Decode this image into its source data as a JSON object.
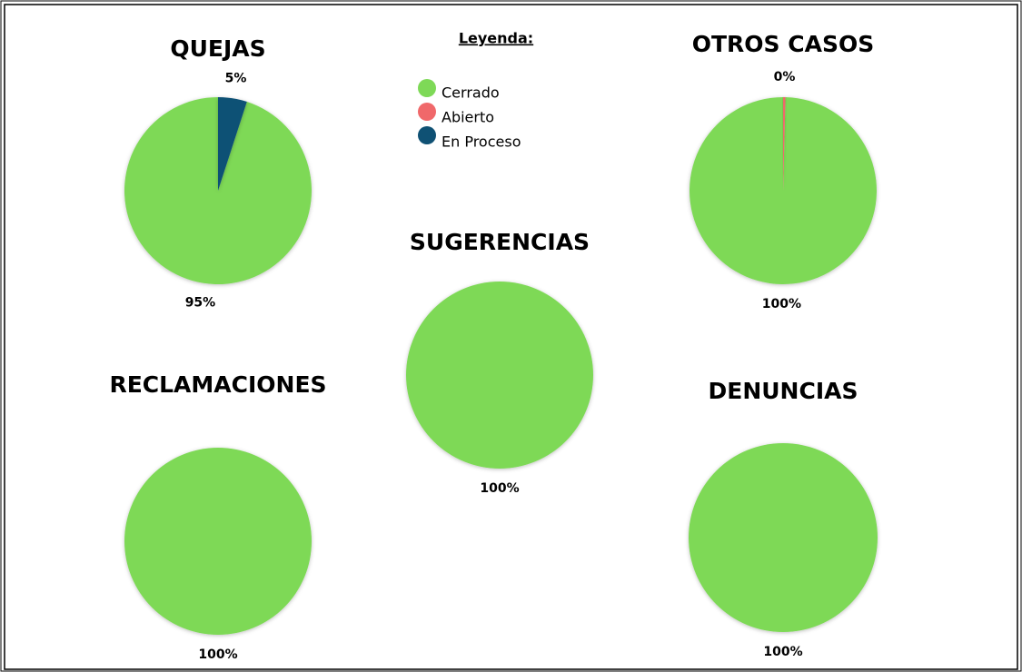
{
  "legend_title": "Leyenda:",
  "chart_data": [
    {
      "type": "pie",
      "title": "QUEJAS",
      "categories": [
        "Cerrado",
        "Abierto",
        "En Proceso"
      ],
      "colors": [
        "#7ed957",
        "#f0686a",
        "#0f5174"
      ],
      "values": [
        95,
        0,
        5
      ],
      "value_labels": [
        "95%",
        null,
        "5%"
      ]
    },
    {
      "type": "pie",
      "title": "OTROS CASOS",
      "categories": [
        "Cerrado",
        "Abierto",
        "En Proceso"
      ],
      "colors": [
        "#7ed957",
        "#f0686a",
        "#0f5174"
      ],
      "values": [
        99.6,
        0.4,
        0
      ],
      "value_labels": [
        "100%",
        "0%",
        null
      ]
    },
    {
      "type": "pie",
      "title": "SUGERENCIAS",
      "categories": [
        "Cerrado",
        "Abierto",
        "En Proceso"
      ],
      "colors": [
        "#7ed957",
        "#f0686a",
        "#0f5174"
      ],
      "values": [
        100,
        0,
        0
      ],
      "value_labels": [
        "100%",
        null,
        null
      ]
    },
    {
      "type": "pie",
      "title": "RECLAMACIONES",
      "categories": [
        "Cerrado",
        "Abierto",
        "En Proceso"
      ],
      "colors": [
        "#7ed957",
        "#f0686a",
        "#0f5174"
      ],
      "values": [
        100,
        0,
        0
      ],
      "value_labels": [
        "100%",
        null,
        null
      ]
    },
    {
      "type": "pie",
      "title": "DENUNCIAS",
      "categories": [
        "Cerrado",
        "Abierto",
        "En Proceso"
      ],
      "colors": [
        "#7ed957",
        "#f0686a",
        "#0f5174"
      ],
      "values": [
        100,
        0,
        0
      ],
      "value_labels": [
        "100%",
        null,
        null
      ]
    }
  ]
}
